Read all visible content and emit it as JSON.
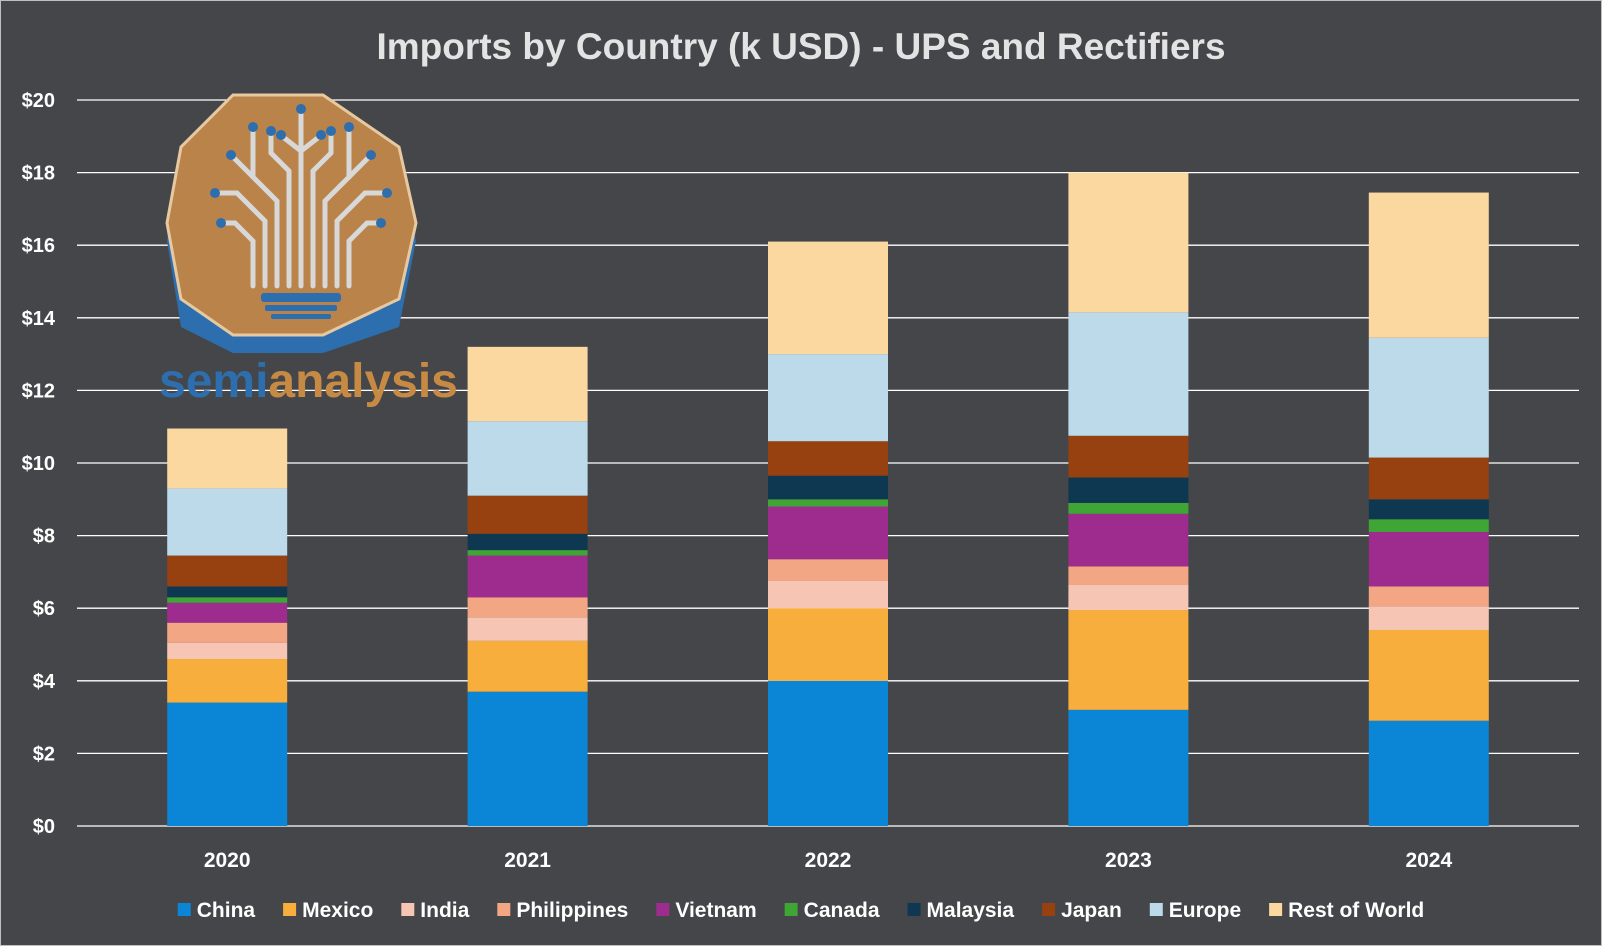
{
  "chart_data": {
    "type": "bar",
    "stacked": true,
    "title": "Imports by Country (k USD)  - UPS and Rectifiers",
    "categories": [
      "2020",
      "2021",
      "2022",
      "2023",
      "2024"
    ],
    "ylim": [
      0,
      20
    ],
    "y_ticks": [
      "$0",
      "$2",
      "$4",
      "$6",
      "$8",
      "$10",
      "$12",
      "$14",
      "$16",
      "$18",
      "$20"
    ],
    "y_tick_values": [
      0,
      2,
      4,
      6,
      8,
      10,
      12,
      14,
      16,
      18,
      20
    ],
    "grid": true,
    "legend_position": "bottom",
    "series": [
      {
        "name": "China",
        "color": "#0b85d6",
        "values": [
          3.4,
          3.7,
          4.0,
          3.2,
          2.9
        ]
      },
      {
        "name": "Mexico",
        "color": "#f7ae3c",
        "values": [
          1.2,
          1.4,
          2.0,
          2.75,
          2.5
        ]
      },
      {
        "name": "India",
        "color": "#f7c5b3",
        "values": [
          0.45,
          0.65,
          0.75,
          0.7,
          0.65
        ]
      },
      {
        "name": "Philippines",
        "color": "#f3a683",
        "values": [
          0.55,
          0.55,
          0.6,
          0.5,
          0.55
        ]
      },
      {
        "name": "Vietnam",
        "color": "#9e2c8e",
        "values": [
          0.55,
          1.15,
          1.45,
          1.45,
          1.5
        ]
      },
      {
        "name": "Canada",
        "color": "#3fa535",
        "values": [
          0.15,
          0.15,
          0.2,
          0.3,
          0.35
        ]
      },
      {
        "name": "Malaysia",
        "color": "#0e3852",
        "values": [
          0.3,
          0.45,
          0.65,
          0.7,
          0.55
        ]
      },
      {
        "name": "Japan",
        "color": "#974010",
        "values": [
          0.85,
          1.05,
          0.95,
          1.15,
          1.15
        ]
      },
      {
        "name": "Europe",
        "color": "#bcdaea",
        "values": [
          1.85,
          2.05,
          2.4,
          3.4,
          3.3
        ]
      },
      {
        "name": "Rest of World",
        "color": "#fad8a0",
        "values": [
          1.65,
          2.05,
          3.1,
          3.85,
          4.0
        ]
      }
    ]
  },
  "logo": {
    "text_part1": "semi",
    "text_part2": "analysis",
    "color_part1": "#2d6eae",
    "color_part2": "#c68a44"
  }
}
